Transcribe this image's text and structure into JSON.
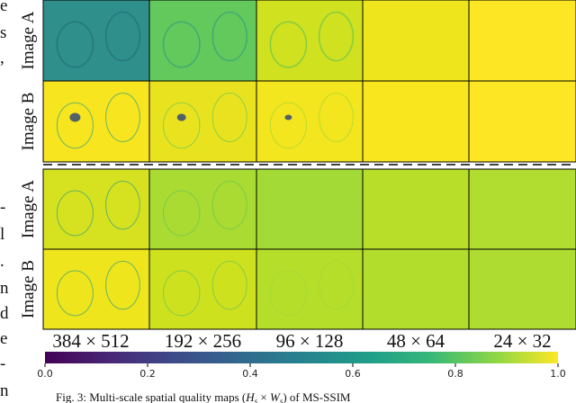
{
  "margin_fragments": [
    "e",
    "s",
    ",",
    "-",
    "l",
    ".",
    "n",
    "d",
    "e",
    "-",
    "n"
  ],
  "figure": {
    "row_groups": [
      {
        "rows": [
          "Image A",
          "Image B"
        ]
      },
      {
        "rows": [
          "Image A",
          "Image B"
        ]
      }
    ],
    "column_labels": [
      "384 × 512",
      "192 × 256",
      "96 × 128",
      "48 × 64",
      "24 × 32"
    ],
    "colorbar": {
      "lim": [
        0,
        1
      ],
      "ticks": [
        {
          "value": 0,
          "label": "0.0"
        },
        {
          "value": 0.2,
          "label": "0.2"
        },
        {
          "value": 0.4,
          "label": "0.4"
        },
        {
          "value": 0.6,
          "label": "0.6"
        },
        {
          "value": 0.8,
          "label": "0.8"
        },
        {
          "value": 1,
          "label": "1.0"
        }
      ]
    }
  },
  "caption": [
    "Fig. 3: Multi-scale spatial quality maps (",
    "H",
    "s",
    " × ",
    "W",
    "s",
    ") of MS-SSIM"
  ]
}
